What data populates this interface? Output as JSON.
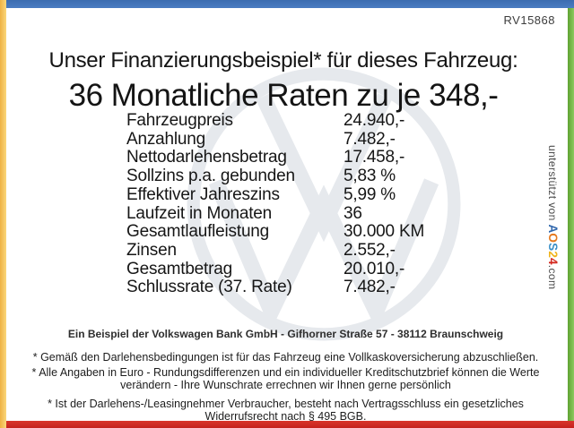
{
  "page": {
    "ref_number": "RV15868",
    "title": "Unser Finanzierungsbeispiel* für dieses Fahrzeug:",
    "subtitle": "36 Monatliche Raten zu je 348,-"
  },
  "finance_table": {
    "rows": [
      {
        "label": "Fahrzeugpreis",
        "value": "24.940,-"
      },
      {
        "label": "Anzahlung",
        "value": "7.482,-"
      },
      {
        "label": "Nettodarlehensbetrag",
        "value": "17.458,-"
      },
      {
        "label": "Sollzins p.a. gebunden",
        "value": "5,83 %"
      },
      {
        "label": "Effektiver Jahreszins",
        "value": "5,99 %"
      },
      {
        "label": "Laufzeit in Monaten",
        "value": "36"
      },
      {
        "label": "Gesamtlaufleistung",
        "value": "30.000 KM"
      },
      {
        "label": "Zinsen",
        "value": "2.552,-"
      },
      {
        "label": "Gesamtbetrag",
        "value": "20.010,-"
      },
      {
        "label": "Schlussrate (37. Rate)",
        "value": "7.482,-"
      }
    ]
  },
  "footer": {
    "bank_line": "Ein Beispiel der Volkswagen Bank GmbH - Gifhorner Straße 57 - 38112 Braunschweig",
    "footnotes": [
      "* Gemäß den Darlehensbedingungen ist für das Fahrzeug eine Vollkaskoversicherung abzuschließen.",
      "* Alle Angaben in Euro - Rundungsdifferenzen und ein individueller Kreditschutzbrief können die Werte verändern - Ihre Wunschrate errechnen wir Ihnen gerne persönlich",
      "* Ist der Darlehens-/Leasingnehmer Verbraucher, besteht nach Vertragsschluss ein gesetzliches Widerrufsrecht nach § 495 BGB."
    ]
  },
  "supporter": {
    "prefix": "unterstützt von ",
    "brand_letters": [
      {
        "ch": "A",
        "color": "#2f66ac"
      },
      {
        "ch": "O",
        "color": "#e5791e"
      },
      {
        "ch": "S",
        "color": "#3a8fc7"
      },
      {
        "ch": "2",
        "color": "#f0b41c"
      },
      {
        "ch": "4",
        "color": "#d3281e"
      }
    ],
    "suffix": ".com"
  },
  "watermark": {
    "icon": "vw-logo",
    "color": "#e6e9ed"
  },
  "colors": {
    "frame_left_yellow": "#f6c55c",
    "frame_top_blue": "#3b6cb0",
    "frame_right_green": "#72b83f",
    "frame_bottom_red": "#c5221d",
    "text": "#161616"
  }
}
